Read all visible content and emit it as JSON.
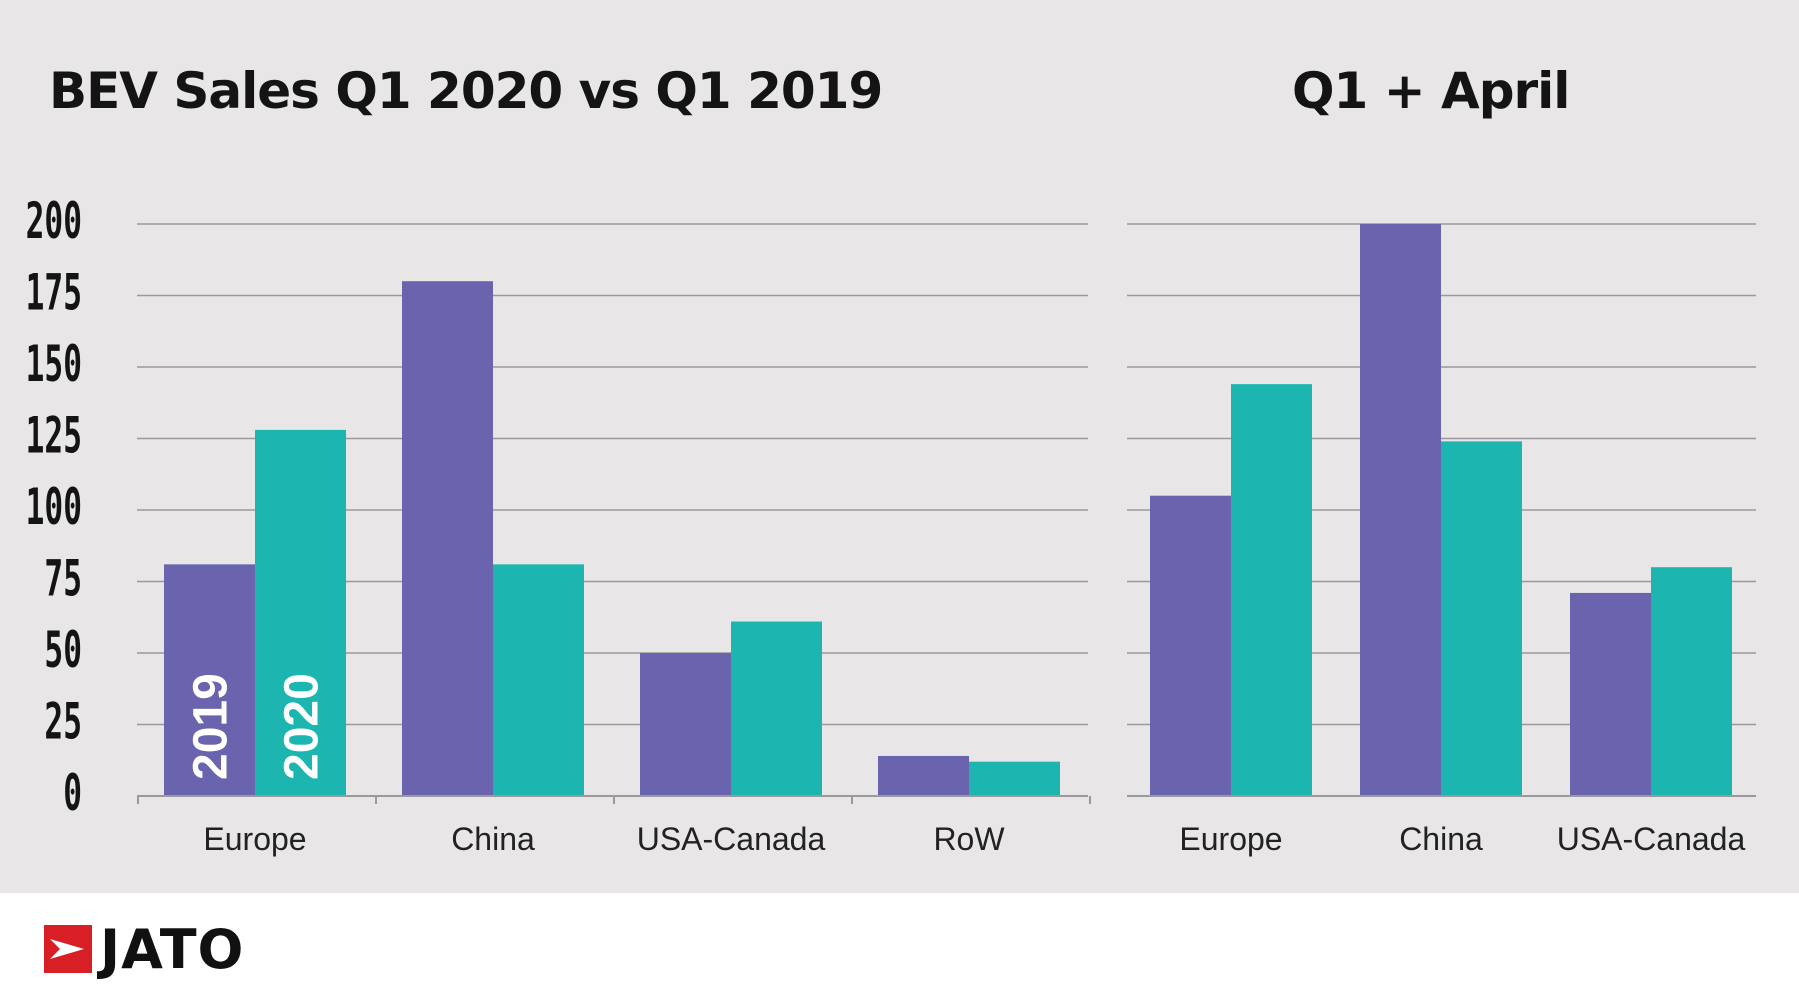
{
  "colors": {
    "series_2019": "#6a64ae",
    "series_2020": "#1db5b0",
    "grid": "#9a9a9a",
    "background": "#e8e6e7"
  },
  "chart_data": [
    {
      "type": "bar",
      "title": "BEV Sales Q1 2020 vs Q1 2019",
      "categories": [
        "Europe",
        "China",
        "USA-Canada",
        "RoW"
      ],
      "series": [
        {
          "name": "2019",
          "values": [
            81,
            180,
            50,
            14
          ]
        },
        {
          "name": "2020",
          "values": [
            128,
            81,
            61,
            12
          ]
        }
      ],
      "ylim": [
        0,
        200
      ],
      "yticks": [
        0,
        25,
        50,
        75,
        100,
        125,
        150,
        175,
        200
      ],
      "grid": true
    },
    {
      "type": "bar",
      "title": "Q1 + April",
      "categories": [
        "Europe",
        "China",
        "USA-Canada"
      ],
      "series": [
        {
          "name": "2019",
          "values": [
            105,
            200,
            71
          ]
        },
        {
          "name": "2020",
          "values": [
            144,
            124,
            80
          ]
        }
      ],
      "ylim": [
        0,
        200
      ],
      "grid": true
    }
  ],
  "logo": {
    "text": "JATO",
    "icon": "jato-logo-icon",
    "color": "#d81f26"
  }
}
